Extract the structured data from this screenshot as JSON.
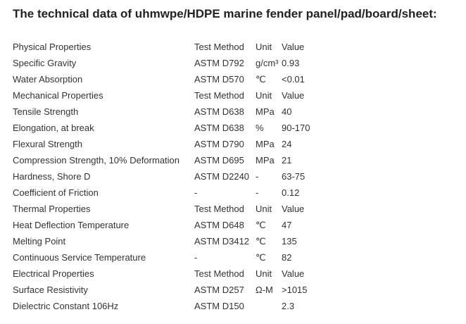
{
  "header": {
    "title": "The technical data of uhmwpe/HDPE marine fender panel/pad/board/sheet:"
  },
  "table": {
    "rows": [
      [
        "Physical Properties",
        "Test Method",
        "Unit",
        "Value"
      ],
      [
        "Specific Gravity",
        "ASTM D792",
        "g/cm³",
        "0.93"
      ],
      [
        "Water Absorption",
        "ASTM D570",
        "℃",
        "<0.01"
      ],
      [
        "Mechanical Properties",
        "Test Method",
        "Unit",
        "Value"
      ],
      [
        "Tensile Strength",
        "ASTM D638",
        "MPa",
        "40"
      ],
      [
        "Elongation, at break",
        "ASTM D638",
        "%",
        "90-170"
      ],
      [
        "Flexural Strength",
        "ASTM D790",
        "MPa",
        "24"
      ],
      [
        "Compression Strength, 10% Deformation",
        "ASTM D695",
        "MPa",
        "21"
      ],
      [
        "Hardness, Shore D",
        "ASTM D2240",
        "-",
        "63-75"
      ],
      [
        "Coefficient of Friction",
        "-",
        "-",
        "0.12"
      ],
      [
        "Thermal Properties",
        "Test Method",
        "Unit",
        "Value"
      ],
      [
        "Heat Deflection Temperature",
        "ASTM D648",
        "℃",
        "47"
      ],
      [
        "Melting Point",
        "ASTM D3412",
        "℃",
        "135"
      ],
      [
        "Continuous Service Temperature",
        "-",
        "℃",
        "82"
      ],
      [
        "Electrical Properties",
        "Test Method",
        "Unit",
        "Value"
      ],
      [
        "Surface Resistivity",
        "ASTM D257",
        "Ω-M",
        ">1015"
      ],
      [
        "Dielectric Constant 106Hz",
        "ASTM D150",
        null,
        "2.3"
      ]
    ]
  }
}
